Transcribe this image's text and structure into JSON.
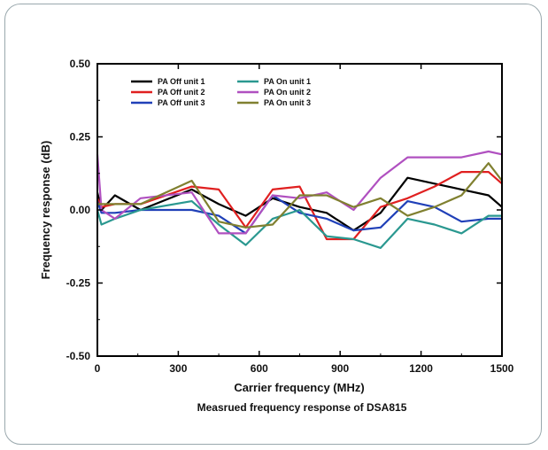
{
  "chart_data": {
    "type": "line",
    "xlabel": "Carrier frequency (MHz)",
    "ylabel": "Frequency response (dB)",
    "caption": "Measrued frequency response of DSA815",
    "xlim": [
      0,
      1500
    ],
    "ylim": [
      -0.5,
      0.5
    ],
    "x_ticks": [
      0,
      300,
      600,
      900,
      1200,
      1500
    ],
    "x_tick_labels": [
      "0",
      "300",
      "600",
      "900",
      "1200",
      "1500"
    ],
    "y_ticks": [
      0.5,
      0.25,
      0,
      -0.25,
      -0.5
    ],
    "y_tick_labels": [
      "0.50",
      "0.25",
      "0.00",
      "-0.25",
      "-0.50"
    ],
    "legend_position": "top-left",
    "grid": false,
    "series": [
      {
        "name": "PA Off  unit 1",
        "color": "#000000",
        "x": [
          0,
          15,
          65,
          160,
          350,
          450,
          550,
          650,
          750,
          850,
          950,
          1050,
          1150,
          1250,
          1350,
          1450,
          1500
        ],
        "y": [
          0.06,
          0.0,
          0.05,
          0.0,
          0.07,
          0.02,
          -0.02,
          0.04,
          0.01,
          -0.01,
          -0.07,
          -0.01,
          0.11,
          0.09,
          0.07,
          0.05,
          0.01
        ]
      },
      {
        "name": "PA Off  unit 2",
        "color": "#e02020",
        "x": [
          0,
          15,
          65,
          160,
          350,
          450,
          550,
          650,
          750,
          850,
          950,
          1050,
          1150,
          1250,
          1350,
          1450,
          1500
        ],
        "y": [
          0.04,
          0.01,
          0.02,
          0.02,
          0.08,
          0.07,
          -0.06,
          0.07,
          0.08,
          -0.1,
          -0.1,
          0.01,
          0.04,
          0.08,
          0.13,
          0.13,
          0.09
        ]
      },
      {
        "name": "PA Off  unit 3",
        "color": "#2040b8",
        "x": [
          0,
          15,
          65,
          160,
          350,
          450,
          550,
          650,
          750,
          850,
          950,
          1050,
          1150,
          1250,
          1350,
          1450,
          1500
        ],
        "y": [
          0.03,
          -0.01,
          -0.01,
          0.0,
          0.0,
          -0.02,
          -0.08,
          0.05,
          -0.01,
          -0.03,
          -0.07,
          -0.06,
          0.03,
          0.01,
          -0.04,
          -0.03,
          -0.03
        ]
      },
      {
        "name": "PA On  unit 1",
        "color": "#2a9890",
        "x": [
          0,
          15,
          65,
          160,
          350,
          450,
          550,
          650,
          750,
          850,
          950,
          1050,
          1150,
          1250,
          1350,
          1450,
          1500
        ],
        "y": [
          0.0,
          -0.05,
          -0.03,
          0.0,
          0.03,
          -0.05,
          -0.12,
          -0.03,
          0.0,
          -0.09,
          -0.1,
          -0.13,
          -0.03,
          -0.05,
          -0.08,
          -0.02,
          -0.02
        ]
      },
      {
        "name": "PA On  unit 2",
        "color": "#b050c0",
        "x": [
          0,
          15,
          65,
          160,
          350,
          450,
          550,
          650,
          750,
          850,
          950,
          1050,
          1150,
          1250,
          1350,
          1450,
          1500
        ],
        "y": [
          0.19,
          0.0,
          -0.03,
          0.04,
          0.06,
          -0.08,
          -0.08,
          0.05,
          0.04,
          0.06,
          0.0,
          0.11,
          0.18,
          0.18,
          0.18,
          0.2,
          0.19
        ]
      },
      {
        "name": "PA On  unit 3",
        "color": "#808030",
        "x": [
          0,
          15,
          65,
          160,
          350,
          450,
          550,
          650,
          750,
          850,
          950,
          1050,
          1150,
          1250,
          1350,
          1450,
          1500
        ],
        "y": [
          0.02,
          0.02,
          0.02,
          0.02,
          0.1,
          -0.04,
          -0.06,
          -0.05,
          0.05,
          0.05,
          0.01,
          0.04,
          -0.02,
          0.01,
          0.05,
          0.16,
          0.1
        ]
      }
    ]
  }
}
